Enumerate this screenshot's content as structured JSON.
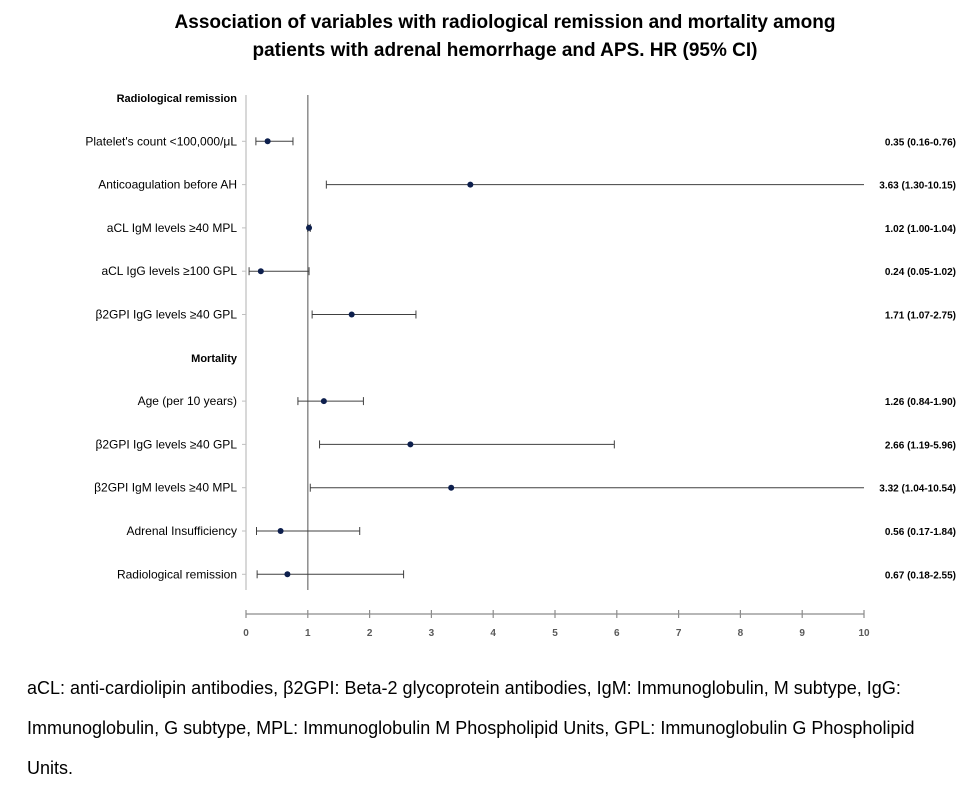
{
  "chart_data": {
    "type": "forest",
    "title_lines": [
      "Association of variables with radiological remission and mortality among",
      "patients with adrenal hemorrhage and APS. HR (95% CI)"
    ],
    "xlim": [
      0,
      10
    ],
    "x_ticks": [
      "0",
      "1",
      "2",
      "3",
      "4",
      "5",
      "6",
      "7",
      "8",
      "9",
      "10"
    ],
    "reference_line": 1,
    "rows": [
      {
        "label": "Radiological remission",
        "section": true
      },
      {
        "label": "Platelet's count <100,000/μL",
        "hr": 0.35,
        "lo": 0.16,
        "hi": 0.76,
        "text": "0.35 (0.16-0.76)"
      },
      {
        "label": "Anticoagulation before AH",
        "hr": 3.63,
        "lo": 1.3,
        "hi": 10.15,
        "text": "3.63 (1.30-10.15)"
      },
      {
        "label": "aCL IgM levels  ≥40 MPL",
        "hr": 1.02,
        "lo": 1.0,
        "hi": 1.04,
        "text": "1.02 (1.00-1.04)"
      },
      {
        "label": "aCL IgG levels  ≥100 GPL",
        "hr": 0.24,
        "lo": 0.05,
        "hi": 1.02,
        "text": "0.24 (0.05-1.02)"
      },
      {
        "label": "β2GPI IgG levels  ≥40 GPL",
        "hr": 1.71,
        "lo": 1.07,
        "hi": 2.75,
        "text": "1.71 (1.07-2.75)"
      },
      {
        "label": "Mortality",
        "section": true
      },
      {
        "label": "Age (per 10 years)",
        "hr": 1.26,
        "lo": 0.84,
        "hi": 1.9,
        "text": "1.26 (0.84-1.90)"
      },
      {
        "label": "β2GPI IgG levels  ≥40 GPL",
        "hr": 2.66,
        "lo": 1.19,
        "hi": 5.96,
        "text": "2.66 (1.19-5.96)"
      },
      {
        "label": "β2GPI IgM levels  ≥40 MPL",
        "hr": 3.32,
        "lo": 1.04,
        "hi": 10.54,
        "text": "3.32 (1.04-10.54)"
      },
      {
        "label": "Adrenal Insufficiency",
        "hr": 0.56,
        "lo": 0.17,
        "hi": 1.84,
        "text": "0.56 (0.17-1.84)"
      },
      {
        "label": "Radiological remission",
        "hr": 0.67,
        "lo": 0.18,
        "hi": 2.55,
        "text": "0.67 (0.18-2.55)"
      }
    ]
  },
  "footnote": "aCL: anti-cardiolipin antibodies, β2GPI: Beta-2 glycoprotein antibodies, IgM: Immunoglobulin, M subtype, IgG: Immunoglobulin, G subtype, MPL: Immunoglobulin M Phospholipid Units, GPL: Immunoglobulin G Phospholipid Units."
}
